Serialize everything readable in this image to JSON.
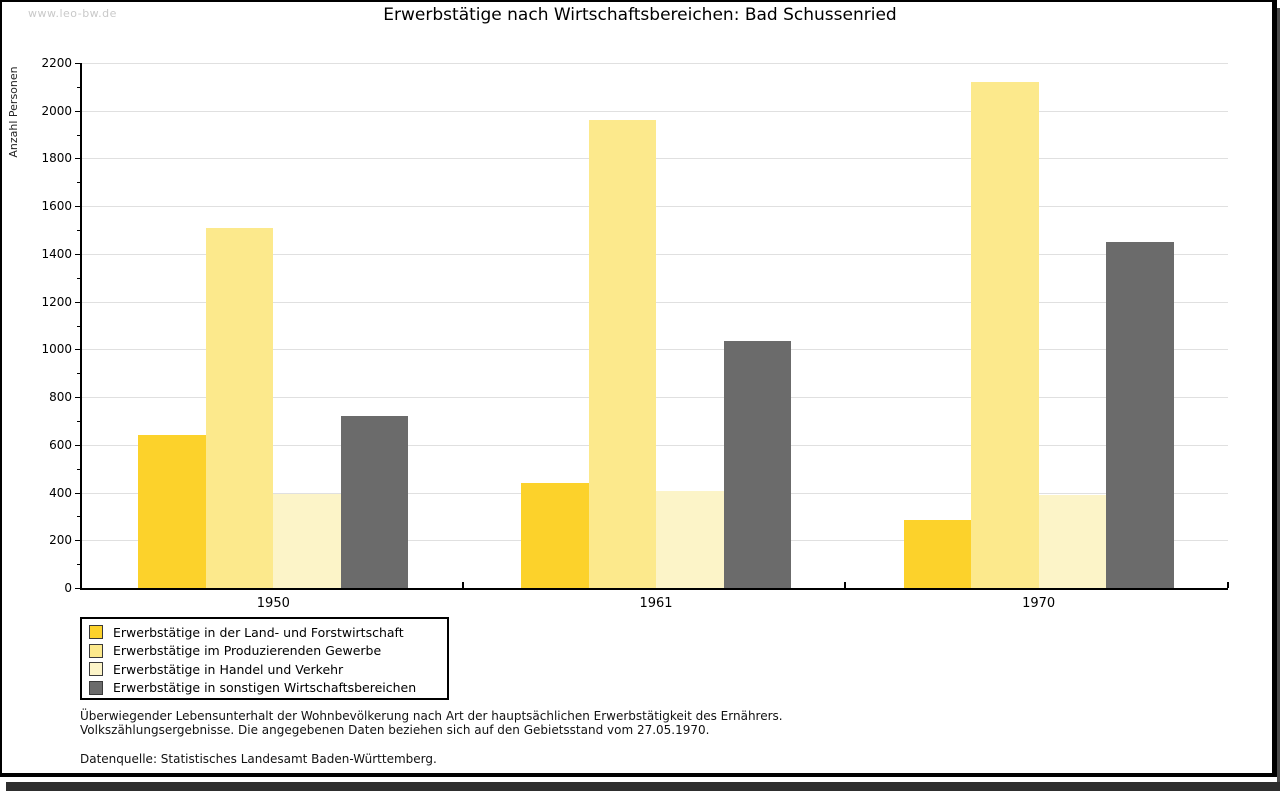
{
  "watermark": "www.leo-bw.de",
  "chart_data": {
    "type": "bar",
    "title": "Erwerbstätige nach Wirtschaftsbereichen: Bad Schussenried",
    "ylabel": "Anzahl Personen",
    "ylim": [
      0,
      2200
    ],
    "ytick_step": 200,
    "ytick_minor_step": 100,
    "grid": "horizontal-major",
    "legend_position": "bottom-left",
    "categories": [
      "1950",
      "1961",
      "1970"
    ],
    "series": [
      {
        "name": "Erwerbstätige in der Land- und Forstwirtschaft",
        "color": "#FCD22B",
        "values": [
          640,
          440,
          285
        ]
      },
      {
        "name": "Erwerbstätige im Produzierenden Gewerbe",
        "color": "#FCE98C",
        "values": [
          1510,
          1960,
          2120
        ]
      },
      {
        "name": "Erwerbstätige in Handel und Verkehr",
        "color": "#FCF4C8",
        "values": [
          395,
          405,
          390
        ]
      },
      {
        "name": "Erwerbstätige in sonstigen Wirtschaftsbereichen",
        "color": "#6B6B6B",
        "values": [
          720,
          1035,
          1450
        ]
      }
    ]
  },
  "footnote": {
    "line1": "Überwiegender Lebensunterhalt der Wohnbevölkerung nach Art der hauptsächlichen Erwerbstätigkeit des Ernährers.",
    "line2": "Volkszählungsergebnisse. Die angegebenen Daten beziehen sich auf den Gebietsstand vom 27.05.1970.",
    "source": "Datenquelle: Statistisches Landesamt Baden-Württemberg."
  }
}
